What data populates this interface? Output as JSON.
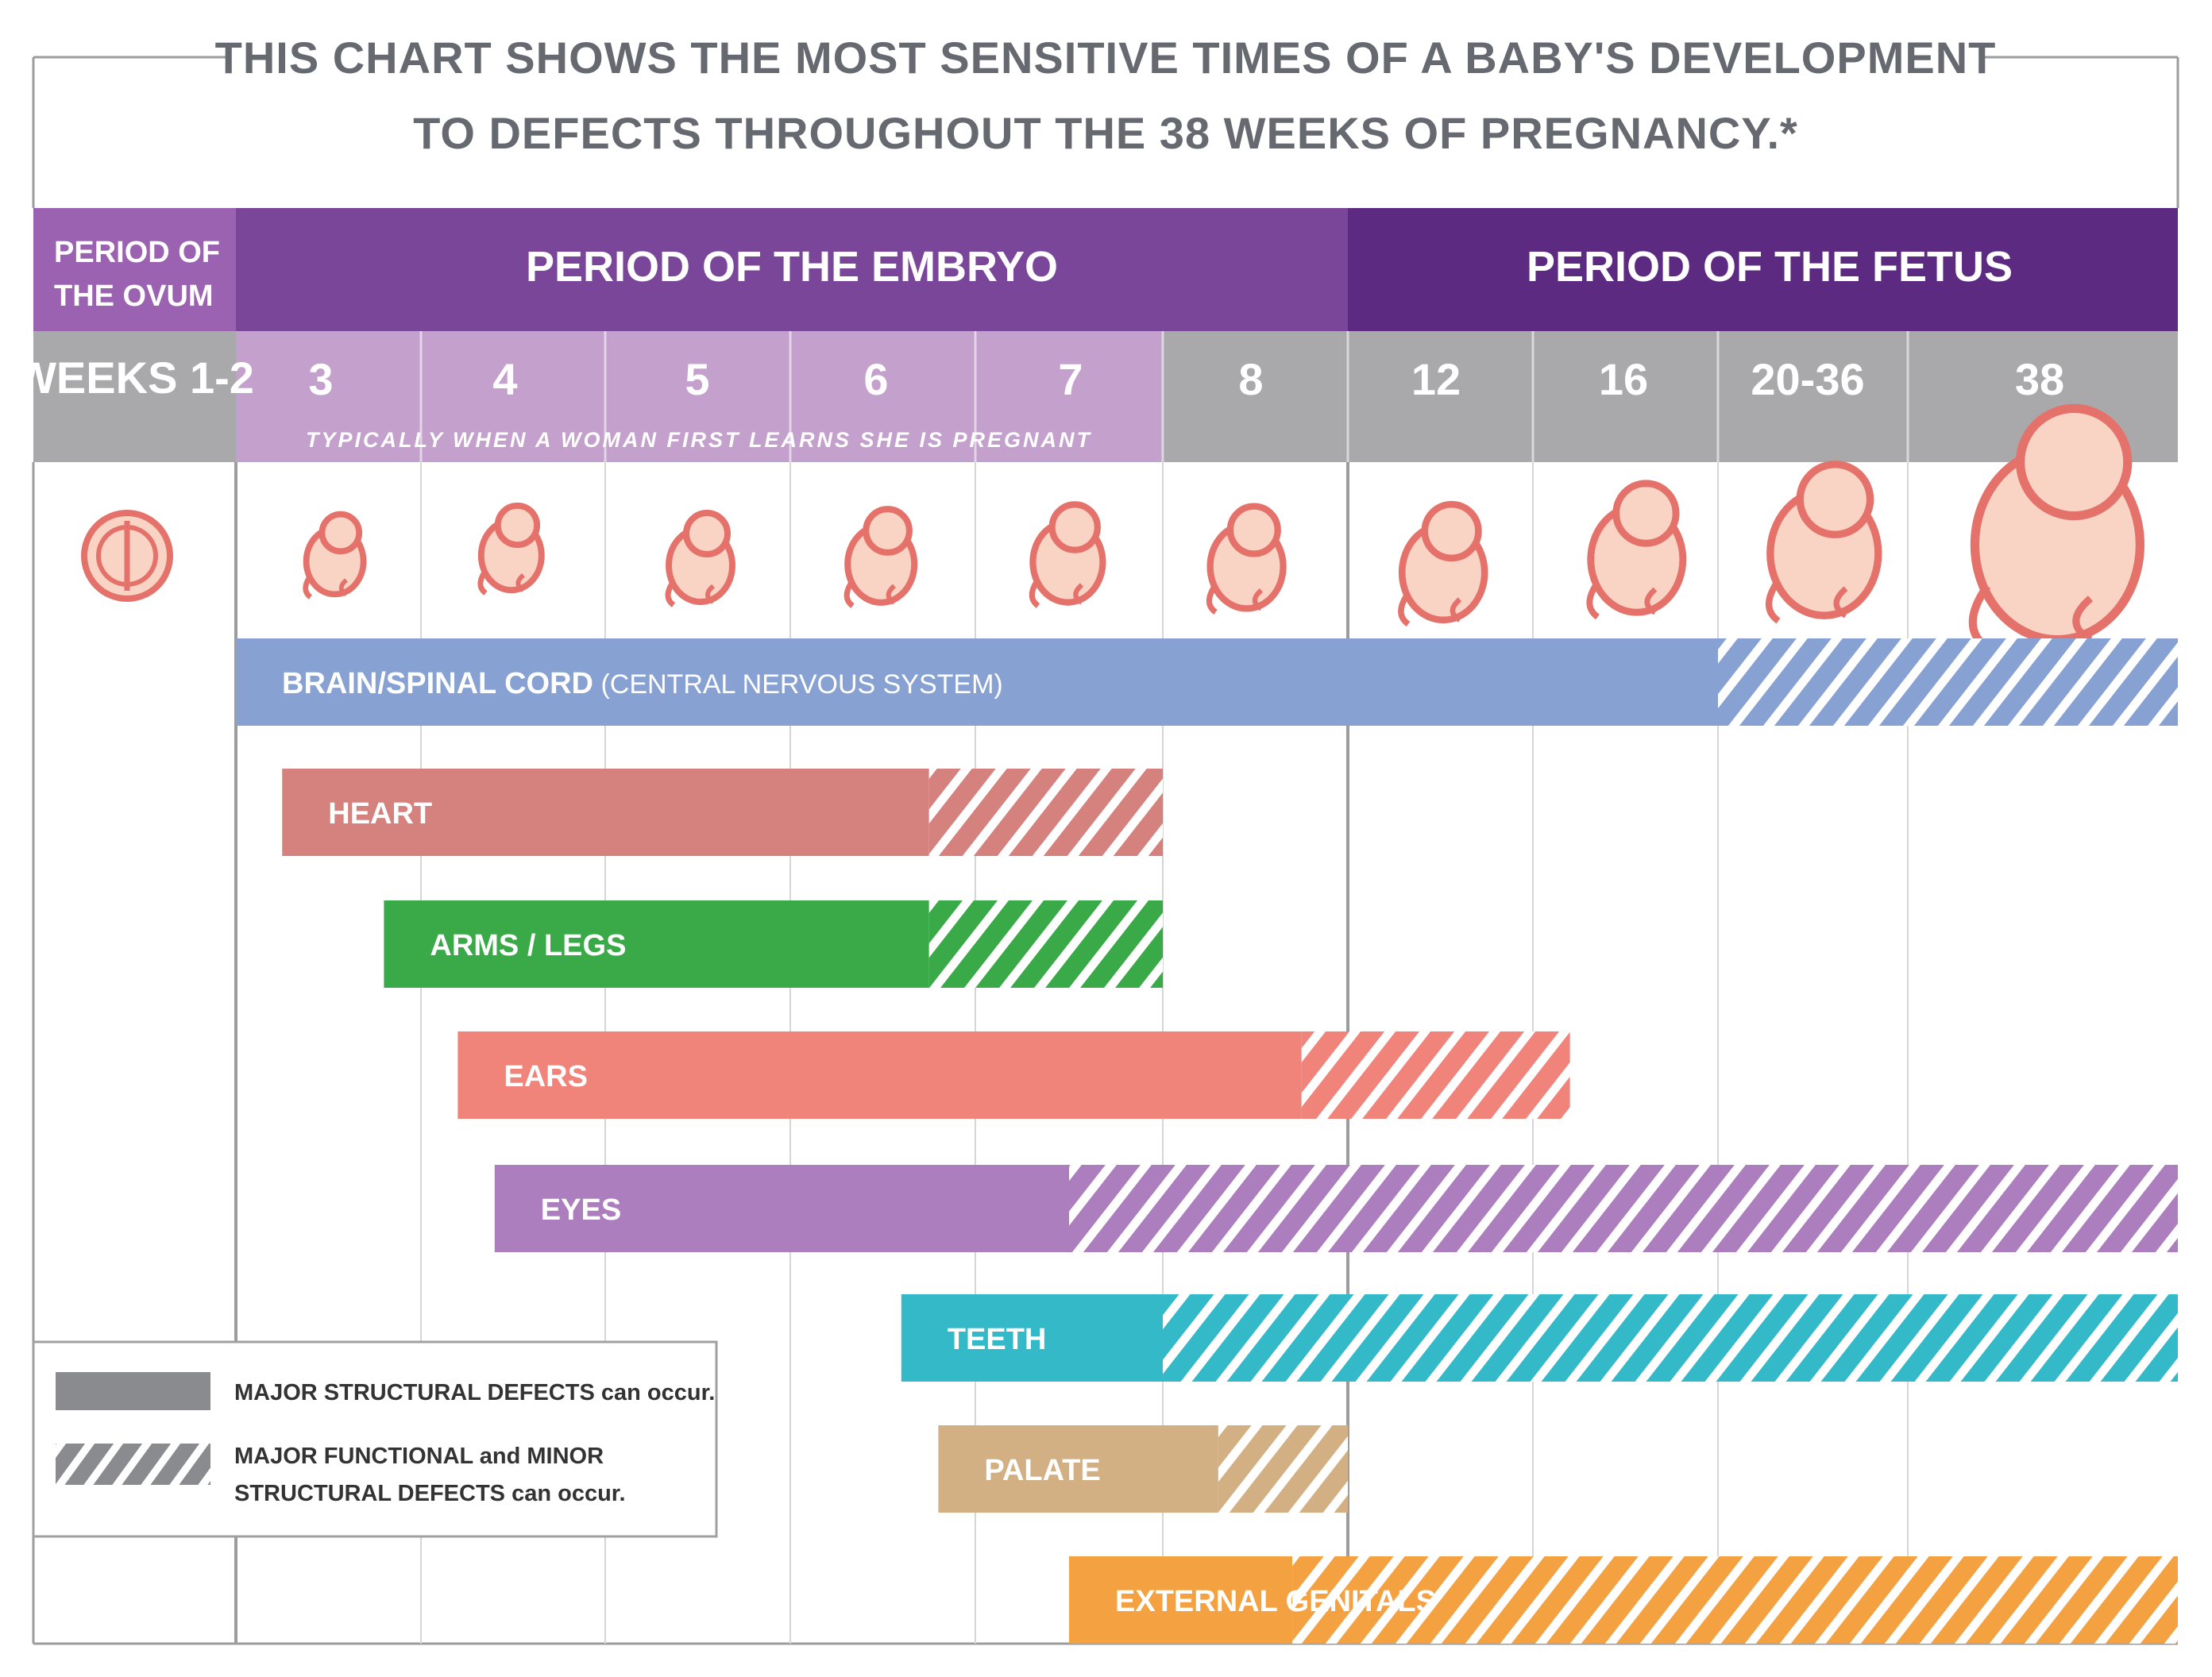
{
  "title": {
    "line1": "THIS CHART SHOWS THE MOST SENSITIVE TIMES OF A BABY'S DEVELOPMENT",
    "line2": "TO DEFECTS THROUGHOUT THE 38 WEEKS OF PREGNANCY.*"
  },
  "periods": {
    "ovum": {
      "line1": "PERIOD OF",
      "line2": "THE OVUM"
    },
    "embryo": "PERIOD OF THE EMBRYO",
    "fetus": "PERIOD OF THE FETUS"
  },
  "weeks": [
    "WEEKS 1-2",
    "3",
    "4",
    "5",
    "6",
    "7",
    "8",
    "12",
    "16",
    "20-36",
    "38"
  ],
  "pregnancy_note": "TYPICALLY WHEN A WOMAN FIRST LEARNS SHE IS PREGNANT",
  "legend": {
    "solid_line1": "MAJOR STRUCTURAL DEFECTS can occur.",
    "hatched_line1": "MAJOR FUNCTIONAL and MINOR",
    "hatched_line2": "STRUCTURAL DEFECTS can occur."
  },
  "colors": {
    "ovum_header": "#9a62b0",
    "embryo_header": "#7a4699",
    "fetus_header": "#5c2a80",
    "week_embryo_bg": "#c4a0cc",
    "week_other_bg": "#a9a9ab",
    "legend_gray": "#8a8b8e"
  },
  "chart_data": {
    "type": "timeline",
    "x_categories": [
      "WEEKS 1-2",
      "3",
      "4",
      "5",
      "6",
      "7",
      "8",
      "12",
      "16",
      "20-36",
      "38"
    ],
    "series": [
      {
        "name": "BRAIN/SPINAL CORD",
        "sub": "(CENTRAL NERVOUS SYSTEM)",
        "color": "#86a1d2",
        "start": 1.0,
        "solid_end": 9.0,
        "end": 11.0
      },
      {
        "name": "HEART",
        "sub": "",
        "color": "#d5827f",
        "start": 1.25,
        "solid_end": 4.75,
        "end": 6.0
      },
      {
        "name": "ARMS / LEGS",
        "sub": "",
        "color": "#3aaa48",
        "start": 1.8,
        "solid_end": 4.75,
        "end": 6.0
      },
      {
        "name": "EARS",
        "sub": "",
        "color": "#f0837a",
        "start": 2.2,
        "solid_end": 6.75,
        "end": 8.2
      },
      {
        "name": "EYES",
        "sub": "",
        "color": "#ac7ebd",
        "start": 2.4,
        "solid_end": 5.5,
        "end": 11.0
      },
      {
        "name": "TEETH",
        "sub": "",
        "color": "#34b9c9",
        "start": 4.6,
        "solid_end": 6.0,
        "end": 11.0
      },
      {
        "name": "PALATE",
        "sub": "",
        "color": "#d3b083",
        "start": 4.8,
        "solid_end": 6.3,
        "end": 7.0
      },
      {
        "name": "EXTERNAL GENITALS",
        "sub": "",
        "color": "#f4a142",
        "start": 5.5,
        "solid_end": 6.7,
        "end": 11.0
      }
    ]
  }
}
